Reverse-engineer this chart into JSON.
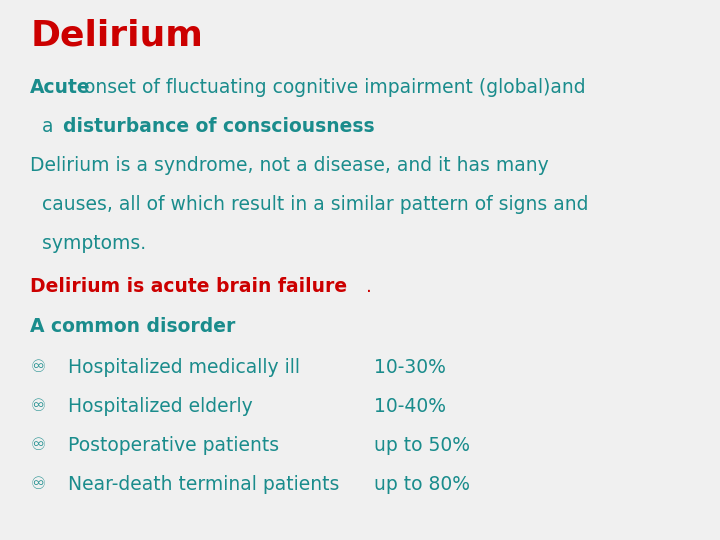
{
  "title": "Delirium",
  "title_color": "#CC0000",
  "title_fontsize": 26,
  "teal_color": "#1a8c8c",
  "red_color": "#CC0000",
  "bg_color": "#f0f0f0",
  "body_fontsize": 13.5,
  "figsize": [
    7.2,
    5.4
  ],
  "dpi": 100
}
